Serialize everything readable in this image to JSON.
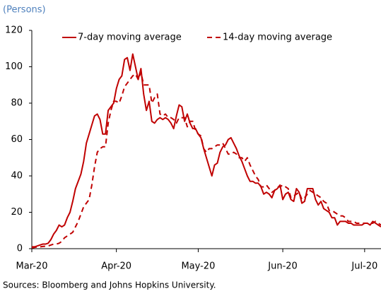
{
  "chart_data": {
    "type": "line",
    "y_label": "(Persons)",
    "source": "Sources: Bloomberg and Johns Hopkins University.",
    "categories": [
      "Mar-20",
      null,
      null,
      null,
      null,
      null,
      null,
      null,
      null,
      null,
      null,
      null,
      null,
      null,
      null,
      null,
      null,
      null,
      null,
      null,
      null,
      null,
      null,
      null,
      null,
      null,
      null,
      null,
      null,
      null,
      null,
      "Apr-20",
      null,
      null,
      null,
      null,
      null,
      null,
      null,
      null,
      null,
      null,
      null,
      null,
      null,
      null,
      null,
      null,
      null,
      null,
      null,
      null,
      null,
      null,
      null,
      null,
      null,
      null,
      null,
      null,
      null,
      "May-20",
      null,
      null,
      null,
      null,
      null,
      null,
      null,
      null,
      null,
      null,
      null,
      null,
      null,
      null,
      null,
      null,
      null,
      null,
      null,
      null,
      null,
      null,
      null,
      null,
      null,
      null,
      null,
      null,
      null,
      null,
      "Jun-20",
      null,
      null,
      null,
      null,
      null,
      null,
      null,
      null,
      null,
      null,
      null,
      null,
      null,
      null,
      null,
      null,
      null,
      null,
      null,
      null,
      null,
      null,
      null,
      null,
      null,
      null,
      null,
      null,
      null,
      "Jul-20",
      null,
      null,
      null,
      null,
      null,
      null
    ],
    "series": [
      {
        "name": "7-day moving average",
        "color": "#c00000",
        "dash": false,
        "values": [
          1,
          1,
          1.5,
          2,
          2.5,
          2.5,
          3,
          5,
          8,
          10,
          13,
          12,
          13,
          17,
          20,
          26,
          33,
          37,
          41,
          48,
          58,
          63,
          68,
          73,
          74,
          71,
          63,
          63,
          76,
          78,
          80,
          88,
          93,
          95,
          104,
          105,
          98,
          107,
          100,
          93,
          99,
          85,
          76,
          81,
          70,
          69,
          71,
          72,
          71,
          72,
          71,
          69,
          66,
          73,
          79,
          78,
          70,
          74,
          69,
          66,
          66,
          63,
          61,
          55,
          50,
          45,
          40,
          46,
          47,
          53,
          56,
          57,
          60,
          61,
          58,
          55,
          51,
          48,
          44,
          40,
          37,
          37,
          36,
          36,
          34,
          30,
          31,
          30,
          28,
          32,
          33,
          35,
          27,
          30,
          31,
          27,
          26,
          33,
          31,
          25,
          26,
          33,
          33,
          33,
          27,
          24,
          26,
          22,
          21,
          20,
          17,
          17,
          13,
          15,
          15,
          15,
          14,
          14,
          13,
          13,
          13,
          13,
          14,
          14,
          13,
          15,
          14,
          13,
          12
        ]
      },
      {
        "name": "14-day moving average",
        "color": "#c00000",
        "dash": true,
        "values": [
          0.5,
          0.7,
          1,
          1,
          1.2,
          1.3,
          1.5,
          2,
          2.5,
          2.5,
          3,
          4,
          6,
          7,
          8,
          9,
          12,
          15,
          19,
          23,
          25,
          27,
          35,
          45,
          53,
          55,
          56,
          56,
          69,
          76,
          81,
          81,
          80,
          84,
          89,
          91,
          93,
          95,
          96,
          93,
          97,
          90,
          90,
          90,
          80,
          83,
          85,
          74,
          73,
          74,
          72,
          72,
          71,
          69,
          72,
          72,
          72,
          67,
          70,
          70,
          65,
          63,
          62,
          55,
          53,
          55,
          55,
          56,
          57,
          57,
          58,
          55,
          52,
          52,
          53,
          52,
          50,
          50,
          48,
          50,
          46,
          43,
          40,
          38,
          34,
          34,
          35,
          33,
          31,
          32,
          34,
          34,
          35,
          34,
          33,
          28,
          29,
          30,
          31,
          27,
          28,
          30,
          32,
          31,
          30,
          29,
          28,
          26,
          25,
          21,
          21,
          20,
          19,
          18,
          18,
          17,
          15,
          15,
          15,
          14,
          14,
          14,
          14,
          14,
          14,
          14,
          15,
          14,
          13
        ]
      }
    ],
    "ylim": [
      0,
      120
    ],
    "yticks": [
      0,
      20,
      40,
      60,
      80,
      100,
      120
    ],
    "legend": "top",
    "grid": false
  }
}
